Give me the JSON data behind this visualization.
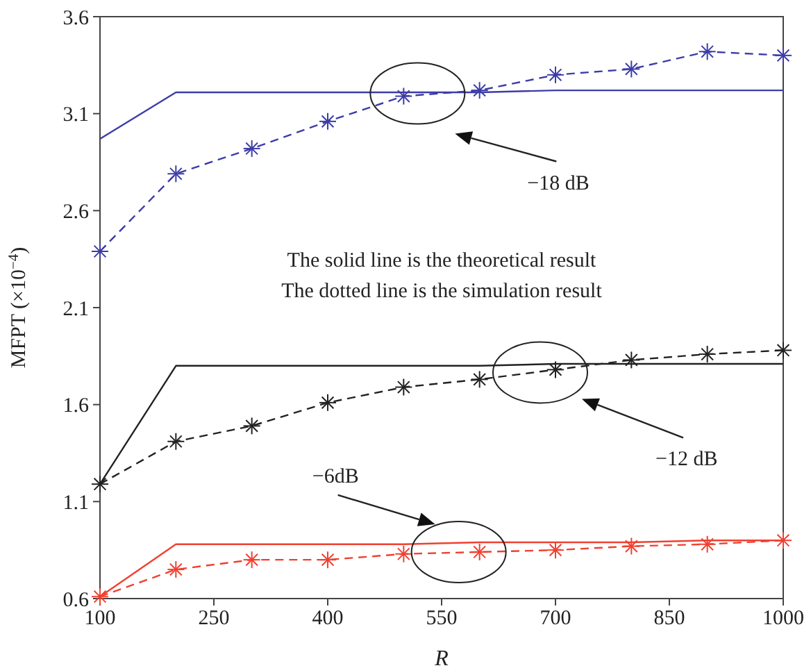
{
  "chart_data": {
    "type": "line",
    "xlabel": "R",
    "ylabel": "MFPT (×10$^{−4}$)",
    "x": [
      100,
      200,
      300,
      400,
      500,
      600,
      700,
      800,
      900,
      1000
    ],
    "series": [
      {
        "color": "#3c3ca8",
        "line_style": "solid",
        "marker": "none",
        "values": [
          2.97,
          3.21,
          3.21,
          3.21,
          3.21,
          3.21,
          3.22,
          3.22,
          3.22,
          3.22
        ]
      },
      {
        "color": "#3c3ca8",
        "line_style": "dashed",
        "marker": "cross",
        "values": [
          2.39,
          2.79,
          2.92,
          3.06,
          3.19,
          3.22,
          3.3,
          3.33,
          3.42,
          3.4
        ]
      },
      {
        "color": "#222222",
        "line_style": "solid",
        "marker": "none",
        "values": [
          1.19,
          1.8,
          1.8,
          1.8,
          1.8,
          1.8,
          1.81,
          1.81,
          1.81,
          1.81
        ]
      },
      {
        "color": "#222222",
        "line_style": "dashed",
        "marker": "cross",
        "values": [
          1.19,
          1.41,
          1.49,
          1.61,
          1.69,
          1.73,
          1.78,
          1.83,
          1.86,
          1.88
        ]
      },
      {
        "color": "#f04030",
        "line_style": "solid",
        "marker": "none",
        "values": [
          0.61,
          0.88,
          0.88,
          0.88,
          0.88,
          0.89,
          0.89,
          0.89,
          0.9,
          0.9
        ]
      },
      {
        "color": "#f04030",
        "line_style": "dashed",
        "marker": "cross",
        "values": [
          0.61,
          0.75,
          0.8,
          0.8,
          0.83,
          0.84,
          0.85,
          0.87,
          0.88,
          0.9
        ]
      }
    ],
    "xlim": [
      100,
      1000
    ],
    "xticks": [
      100,
      250,
      400,
      550,
      700,
      850,
      1000
    ],
    "ylim": [
      0.6,
      3.6
    ],
    "yticks": [
      0.6,
      1.1,
      1.6,
      2.1,
      2.6,
      3.1,
      3.6
    ],
    "grid": false,
    "legend": false,
    "annotations": [
      "−18 dB",
      "−12 dB",
      "−6dB",
      "The solid line is the theoretical result",
      "The dotted line is the simulation result"
    ]
  }
}
